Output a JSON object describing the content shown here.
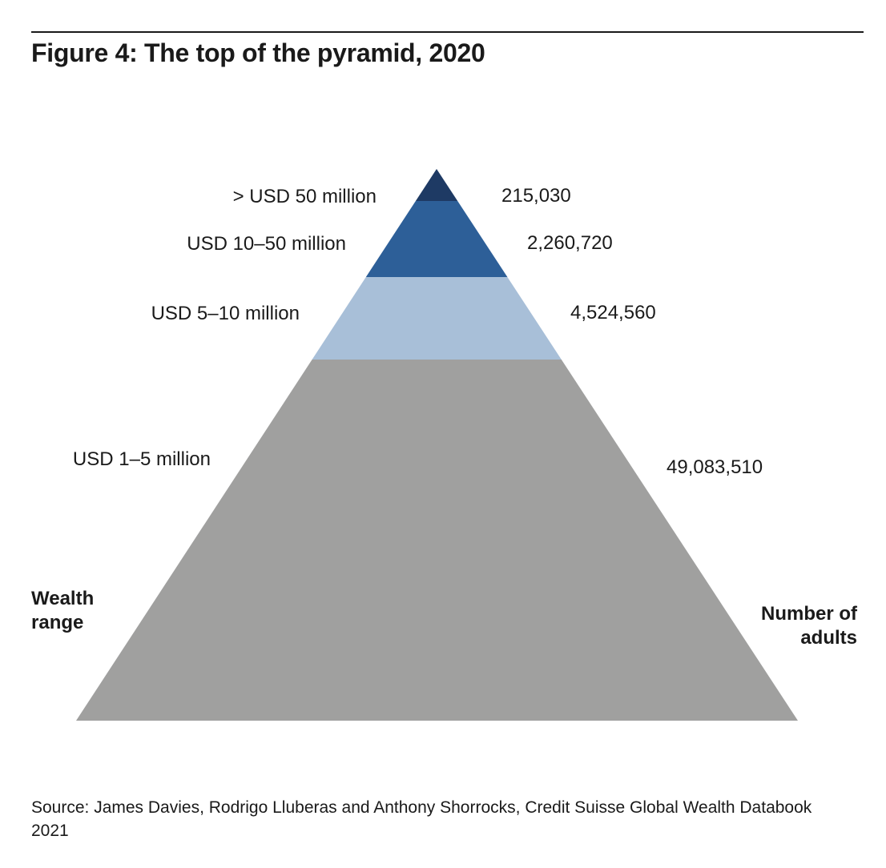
{
  "figure": {
    "title": "Figure 4: The top of the pyramid, 2020",
    "source": "Source: James Davies, Rodrigo Lluberas and Anthony Shorrocks, Credit Suisse Global Wealth Databook 2021"
  },
  "chart_data": {
    "type": "pyramid",
    "title": "Figure 4: The top of the pyramid, 2020",
    "left_axis_label": [
      "Wealth",
      "range"
    ],
    "right_axis_label": [
      "Number of",
      "adults"
    ],
    "tiers": [
      {
        "range": "> USD 50 million",
        "adults_label": "215,030",
        "adults": 215030,
        "color": "#1e3a64"
      },
      {
        "range": "USD 10–50 million",
        "adults_label": "2,260,720",
        "adults": 2260720,
        "color": "#2d5f98"
      },
      {
        "range": "USD 5–10 million",
        "adults_label": "4,524,560",
        "adults": 4524560,
        "color": "#a8bfd8"
      },
      {
        "range": "USD 1–5 million",
        "adults_label": "49,083,510",
        "adults": 49083510,
        "color": "#a0a09f"
      }
    ]
  }
}
